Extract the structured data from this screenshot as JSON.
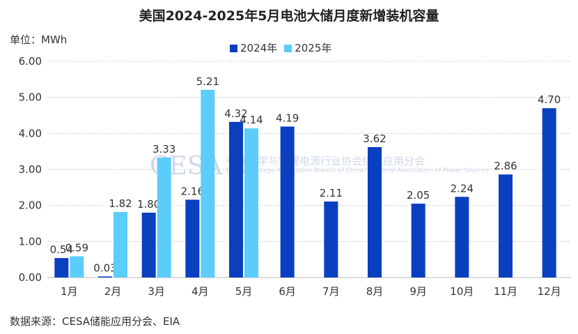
{
  "chart_data": {
    "type": "bar",
    "title": "美国2024-2025年5月电池大储月度新增装机容量",
    "ylabel": "单位：MWh",
    "categories": [
      "1月",
      "2月",
      "3月",
      "4月",
      "5月",
      "6月",
      "7月",
      "8月",
      "9月",
      "10月",
      "11月",
      "12月"
    ],
    "series": [
      {
        "name": "2024年",
        "color": "#0a3fc0",
        "values": [
          0.54,
          0.03,
          1.8,
          2.16,
          4.32,
          4.19,
          2.11,
          3.62,
          2.05,
          2.24,
          2.86,
          4.7
        ]
      },
      {
        "name": "2025年",
        "color": "#5ccdfa",
        "values": [
          0.59,
          1.82,
          3.33,
          5.21,
          4.14,
          null,
          null,
          null,
          null,
          null,
          null,
          null
        ]
      }
    ],
    "ylim": [
      0,
      6
    ],
    "yticks": [
      "0.00",
      "1.00",
      "2.00",
      "3.00",
      "4.00",
      "5.00",
      "6.00"
    ],
    "grid": true,
    "legend": "top",
    "source": "数据来源：CESA储能应用分会、EIA"
  },
  "watermark": {
    "logo": "CESA",
    "cn": "中国化学与物理电源行业协会储能应用分会",
    "en": "Energy Storage Application Branch of China Industrial Association of Power Sources"
  }
}
